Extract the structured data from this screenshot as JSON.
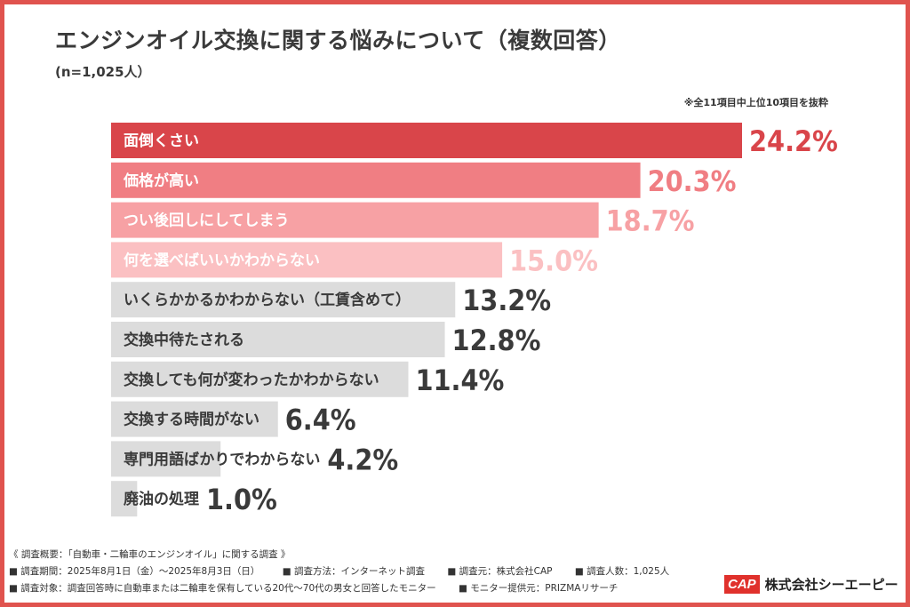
{
  "title": "エンジンオイル交換に関する悩みについて（複数回答）",
  "sample": "(n=1,025人）",
  "note": "※全11項目中上位10項目を抜粋",
  "chart_data": {
    "type": "bar",
    "orientation": "horizontal",
    "unit": "%",
    "categories": [
      "面倒くさい",
      "価格が高い",
      "つい後回しにしてしまう",
      "何を選べばいいかわからない",
      "いくらかかるかわからない（工賃含めて）",
      "交換中待たされる",
      "交換しても何が変わったかわからない",
      "交換する時間がない",
      "専門用語ばかりでわからない",
      "廃油の処理"
    ],
    "values": [
      24.2,
      20.3,
      18.7,
      15.0,
      13.2,
      12.8,
      11.4,
      6.4,
      4.2,
      1.0
    ],
    "value_labels": [
      "24.2%",
      "20.3%",
      "18.7%",
      "15.0%",
      "13.2%",
      "12.8%",
      "11.4%",
      "6.4%",
      "4.2%",
      "1.0%"
    ],
    "xlim": [
      0,
      24.2
    ],
    "bar_colors": [
      "#d9454a",
      "#f07e83",
      "#f7a1a4",
      "#fbc0c2",
      "#dcdcdc",
      "#dcdcdc",
      "#dcdcdc",
      "#dcdcdc",
      "#dcdcdc",
      "#dcdcdc"
    ],
    "label_colors": [
      "#ffffff",
      "#ffffff",
      "#ffffff",
      "#ffffff",
      "#3a3a3a",
      "#3a3a3a",
      "#3a3a3a",
      "#3a3a3a",
      "#3a3a3a",
      "#3a3a3a"
    ],
    "value_colors": [
      "#d9454a",
      "#f07e83",
      "#f7a1a4",
      "#fbc0c2",
      "#3a3a3a",
      "#3a3a3a",
      "#3a3a3a",
      "#3a3a3a",
      "#3a3a3a",
      "#3a3a3a"
    ]
  },
  "survey": {
    "header": "《 調査概要：「自動車・二輪車のエンジンオイル」に関する調査 》",
    "period": "■ 調査期間：2025年8月1日（金）〜2025年8月3日（日）",
    "method": "■ 調査方法：インターネット調査",
    "source": "■ 調査元：株式会社CAP",
    "count": "■ 調査人数：1,025人",
    "target": "■ 調査対象：調査回答時に自動車または二輪車を保有している20代〜70代の男女と回答したモニター",
    "provider": "■ モニター提供元：PRIZMAリサーチ"
  },
  "logo": {
    "mark": "CAP",
    "name": "株式会社シーエーピー"
  }
}
